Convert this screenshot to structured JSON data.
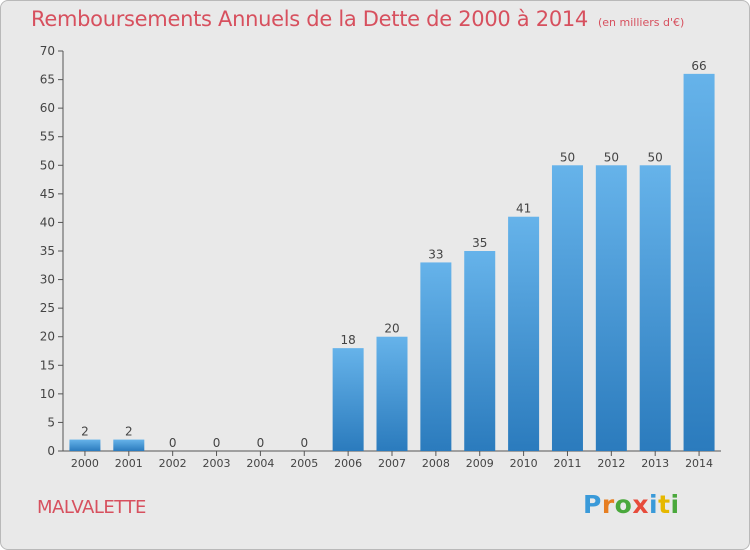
{
  "title": "Remboursements Annuels de la Dette de 2000 à 2014",
  "subtitle": "(en milliers d'€)",
  "commune": "MALVALETTE",
  "brand": {
    "letters": [
      "P",
      "r",
      "o",
      "x",
      "i",
      "t",
      "i"
    ],
    "colors": [
      "#3a9ad9",
      "#e67e22",
      "#4aa83c",
      "#e74c3c",
      "#3a9ad9",
      "#e6b800",
      "#4aa83c"
    ]
  },
  "colors": {
    "bar_light": "#66b3ea",
    "bar_dark": "#2b7bbd",
    "text": "#d7505e"
  },
  "chart_data": {
    "type": "bar",
    "categories": [
      "2000",
      "2001",
      "2002",
      "2003",
      "2004",
      "2005",
      "2006",
      "2007",
      "2008",
      "2009",
      "2010",
      "2011",
      "2012",
      "2013",
      "2014"
    ],
    "values": [
      2,
      2,
      0,
      0,
      0,
      0,
      18,
      20,
      33,
      35,
      41,
      50,
      50,
      50,
      66
    ],
    "ylim": [
      0,
      70
    ],
    "yticks": [
      0,
      5,
      10,
      15,
      20,
      25,
      30,
      35,
      40,
      45,
      50,
      55,
      60,
      65,
      70
    ],
    "grid": false,
    "legend": "none"
  }
}
